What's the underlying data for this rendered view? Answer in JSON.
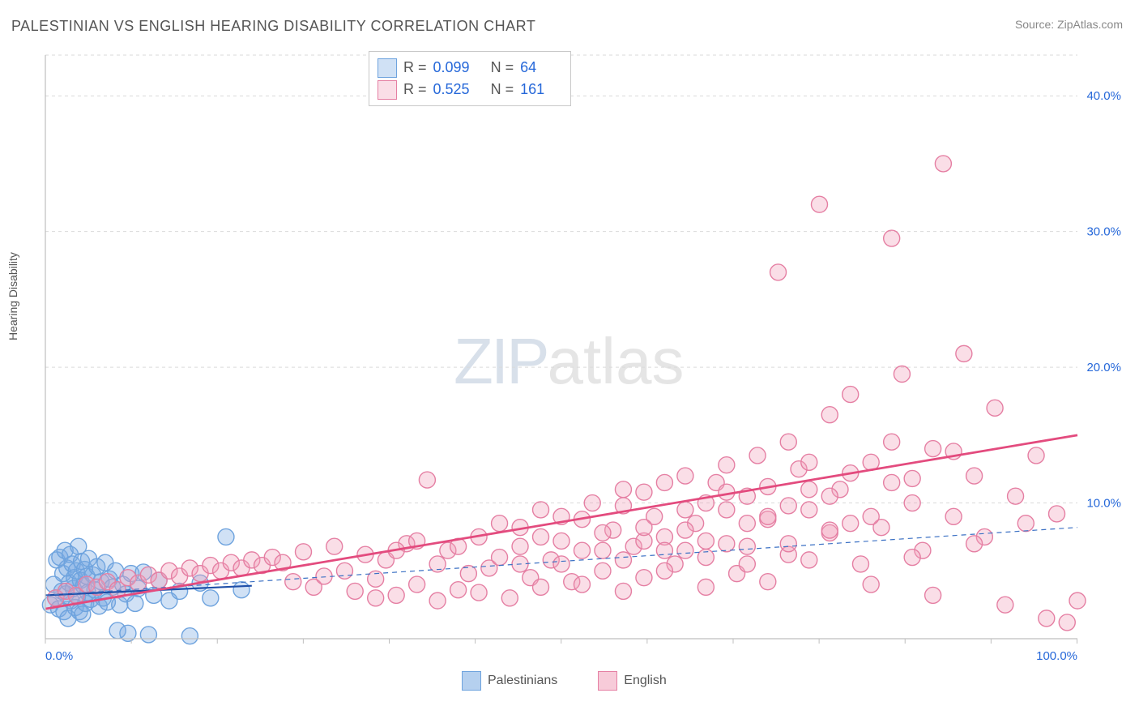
{
  "title": "PALESTINIAN VS ENGLISH HEARING DISABILITY CORRELATION CHART",
  "source": "Source: ZipAtlas.com",
  "ylabel": "Hearing Disability",
  "watermark": {
    "part1": "ZIP",
    "part2": "atlas"
  },
  "chart": {
    "type": "scatter",
    "xlim": [
      0,
      100
    ],
    "ylim": [
      0,
      43
    ],
    "x_ticks": [
      0,
      100
    ],
    "x_tick_labels": [
      "0.0%",
      "100.0%"
    ],
    "x_minor_step": 8.33,
    "y_ticks": [
      10,
      20,
      30,
      40
    ],
    "y_tick_labels": [
      "10.0%",
      "20.0%",
      "30.0%",
      "40.0%"
    ],
    "grid_color": "#d9d9d9",
    "axis_color": "#bfbfbf",
    "background": "#ffffff",
    "marker_radius": 10,
    "marker_stroke_width": 1.4,
    "series": [
      {
        "name": "Palestinians",
        "fill": "rgba(120,170,225,0.35)",
        "stroke": "#6ea3de",
        "trend_solid": {
          "x1": 0,
          "y1": 3.2,
          "x2": 20,
          "y2": 3.9,
          "color": "#1f4fa8",
          "width": 2.2
        },
        "trend_dashed": {
          "x1": 0,
          "y1": 3.2,
          "x2": 100,
          "y2": 8.2,
          "color": "#3c71c4",
          "width": 1.2,
          "dash": "6 5"
        },
        "stats": {
          "R": "0.099",
          "N": "64"
        },
        "points": [
          [
            0.5,
            2.5
          ],
          [
            0.8,
            4.0
          ],
          [
            1.0,
            3.0
          ],
          [
            1.1,
            5.8
          ],
          [
            1.3,
            2.2
          ],
          [
            1.4,
            6.0
          ],
          [
            1.6,
            3.5
          ],
          [
            1.7,
            4.8
          ],
          [
            1.8,
            2.0
          ],
          [
            1.9,
            6.5
          ],
          [
            2.0,
            3.3
          ],
          [
            2.1,
            5.2
          ],
          [
            2.2,
            1.5
          ],
          [
            2.3,
            4.1
          ],
          [
            2.4,
            6.2
          ],
          [
            2.5,
            2.8
          ],
          [
            2.6,
            5.5
          ],
          [
            2.7,
            3.7
          ],
          [
            2.8,
            4.5
          ],
          [
            2.9,
            2.3
          ],
          [
            3.0,
            5.0
          ],
          [
            3.1,
            3.1
          ],
          [
            3.2,
            6.8
          ],
          [
            3.3,
            2.0
          ],
          [
            3.4,
            4.3
          ],
          [
            3.5,
            5.7
          ],
          [
            3.6,
            1.8
          ],
          [
            3.7,
            3.9
          ],
          [
            3.8,
            5.1
          ],
          [
            3.9,
            2.6
          ],
          [
            4.0,
            4.6
          ],
          [
            4.1,
            3.4
          ],
          [
            4.2,
            5.9
          ],
          [
            4.4,
            2.9
          ],
          [
            4.6,
            4.7
          ],
          [
            4.8,
            3.6
          ],
          [
            5.0,
            5.3
          ],
          [
            5.2,
            2.4
          ],
          [
            5.4,
            4.2
          ],
          [
            5.6,
            3.0
          ],
          [
            5.8,
            5.6
          ],
          [
            6.0,
            2.7
          ],
          [
            6.2,
            4.4
          ],
          [
            6.5,
            3.8
          ],
          [
            6.8,
            5.0
          ],
          [
            7.0,
            0.6
          ],
          [
            7.2,
            2.5
          ],
          [
            7.5,
            4.0
          ],
          [
            7.8,
            3.3
          ],
          [
            8.0,
            0.4
          ],
          [
            8.3,
            4.8
          ],
          [
            8.7,
            2.6
          ],
          [
            9.0,
            3.7
          ],
          [
            9.5,
            4.9
          ],
          [
            10.0,
            0.3
          ],
          [
            10.5,
            3.2
          ],
          [
            11.0,
            4.3
          ],
          [
            12.0,
            2.8
          ],
          [
            13.0,
            3.5
          ],
          [
            14.0,
            0.2
          ],
          [
            15.0,
            4.1
          ],
          [
            16.0,
            3.0
          ],
          [
            17.5,
            7.5
          ],
          [
            19.0,
            3.6
          ]
        ]
      },
      {
        "name": "English",
        "fill": "rgba(240,160,185,0.35)",
        "stroke": "#e57fa3",
        "trend_solid": {
          "x1": 0,
          "y1": 2.2,
          "x2": 100,
          "y2": 15.0,
          "color": "#e34b7e",
          "width": 2.8
        },
        "trend_dashed": null,
        "stats": {
          "R": "0.525",
          "N": "161"
        },
        "points": [
          [
            1,
            3.0
          ],
          [
            2,
            3.5
          ],
          [
            3,
            3.2
          ],
          [
            4,
            4.0
          ],
          [
            5,
            3.8
          ],
          [
            6,
            4.2
          ],
          [
            7,
            3.6
          ],
          [
            8,
            4.5
          ],
          [
            9,
            4.1
          ],
          [
            10,
            4.7
          ],
          [
            11,
            4.3
          ],
          [
            12,
            5.0
          ],
          [
            13,
            4.6
          ],
          [
            14,
            5.2
          ],
          [
            15,
            4.8
          ],
          [
            16,
            5.4
          ],
          [
            17,
            5.0
          ],
          [
            18,
            5.6
          ],
          [
            19,
            5.2
          ],
          [
            20,
            5.8
          ],
          [
            21,
            5.4
          ],
          [
            22,
            6.0
          ],
          [
            23,
            5.6
          ],
          [
            24,
            4.2
          ],
          [
            25,
            6.4
          ],
          [
            26,
            3.8
          ],
          [
            27,
            4.6
          ],
          [
            28,
            6.8
          ],
          [
            29,
            5.0
          ],
          [
            30,
            3.5
          ],
          [
            31,
            6.2
          ],
          [
            32,
            4.4
          ],
          [
            33,
            5.8
          ],
          [
            34,
            3.2
          ],
          [
            35,
            7.0
          ],
          [
            36,
            4.0
          ],
          [
            37,
            11.7
          ],
          [
            38,
            5.5
          ],
          [
            39,
            6.5
          ],
          [
            40,
            3.6
          ],
          [
            41,
            4.8
          ],
          [
            42,
            7.5
          ],
          [
            43,
            5.2
          ],
          [
            44,
            6.0
          ],
          [
            45,
            3.0
          ],
          [
            46,
            8.2
          ],
          [
            47,
            4.5
          ],
          [
            48,
            9.5
          ],
          [
            49,
            5.8
          ],
          [
            50,
            7.2
          ],
          [
            51,
            4.2
          ],
          [
            52,
            6.5
          ],
          [
            53,
            10.0
          ],
          [
            54,
            5.0
          ],
          [
            55,
            8.0
          ],
          [
            56,
            11.0
          ],
          [
            57,
            6.8
          ],
          [
            58,
            4.5
          ],
          [
            59,
            9.0
          ],
          [
            60,
            7.5
          ],
          [
            61,
            5.5
          ],
          [
            62,
            12.0
          ],
          [
            63,
            8.5
          ],
          [
            64,
            6.0
          ],
          [
            65,
            11.5
          ],
          [
            66,
            7.0
          ],
          [
            67,
            4.8
          ],
          [
            68,
            10.5
          ],
          [
            69,
            13.5
          ],
          [
            70,
            8.8
          ],
          [
            71,
            27.0
          ],
          [
            72,
            6.2
          ],
          [
            73,
            12.5
          ],
          [
            74,
            9.5
          ],
          [
            75,
            32.0
          ],
          [
            76,
            7.8
          ],
          [
            77,
            11.0
          ],
          [
            78,
            18.0
          ],
          [
            79,
            5.5
          ],
          [
            80,
            13.0
          ],
          [
            81,
            8.2
          ],
          [
            82,
            29.5
          ],
          [
            83,
            19.5
          ],
          [
            84,
            10.0
          ],
          [
            85,
            6.5
          ],
          [
            86,
            14.0
          ],
          [
            87,
            35.0
          ],
          [
            88,
            9.0
          ],
          [
            89,
            21.0
          ],
          [
            90,
            12.0
          ],
          [
            91,
            7.5
          ],
          [
            92,
            17.0
          ],
          [
            93,
            2.5
          ],
          [
            94,
            10.5
          ],
          [
            95,
            8.5
          ],
          [
            96,
            13.5
          ],
          [
            97,
            1.5
          ],
          [
            98,
            9.2
          ],
          [
            99,
            1.2
          ],
          [
            100,
            2.8
          ],
          [
            32,
            3.0
          ],
          [
            34,
            6.5
          ],
          [
            36,
            7.2
          ],
          [
            38,
            2.8
          ],
          [
            40,
            6.8
          ],
          [
            42,
            3.4
          ],
          [
            44,
            8.5
          ],
          [
            46,
            5.5
          ],
          [
            48,
            3.8
          ],
          [
            50,
            9.0
          ],
          [
            52,
            4.0
          ],
          [
            54,
            7.8
          ],
          [
            56,
            3.5
          ],
          [
            58,
            10.8
          ],
          [
            60,
            5.0
          ],
          [
            62,
            8.0
          ],
          [
            64,
            3.8
          ],
          [
            66,
            9.5
          ],
          [
            68,
            6.8
          ],
          [
            70,
            4.2
          ],
          [
            72,
            14.5
          ],
          [
            74,
            5.8
          ],
          [
            76,
            16.5
          ],
          [
            78,
            8.5
          ],
          [
            80,
            4.0
          ],
          [
            82,
            11.5
          ],
          [
            84,
            6.0
          ],
          [
            86,
            3.2
          ],
          [
            88,
            13.8
          ],
          [
            90,
            7.0
          ],
          [
            46,
            6.8
          ],
          [
            48,
            7.5
          ],
          [
            50,
            5.5
          ],
          [
            52,
            8.8
          ],
          [
            54,
            6.5
          ],
          [
            56,
            9.8
          ],
          [
            58,
            7.2
          ],
          [
            60,
            11.5
          ],
          [
            62,
            6.5
          ],
          [
            64,
            10.0
          ],
          [
            66,
            12.8
          ],
          [
            68,
            8.5
          ],
          [
            70,
            11.2
          ],
          [
            72,
            9.8
          ],
          [
            74,
            13.0
          ],
          [
            76,
            10.5
          ],
          [
            78,
            12.2
          ],
          [
            80,
            9.0
          ],
          [
            82,
            14.5
          ],
          [
            84,
            11.8
          ],
          [
            56,
            5.8
          ],
          [
            58,
            8.2
          ],
          [
            60,
            6.5
          ],
          [
            62,
            9.5
          ],
          [
            64,
            7.2
          ],
          [
            66,
            10.8
          ],
          [
            68,
            5.5
          ],
          [
            70,
            9.0
          ],
          [
            72,
            7.0
          ],
          [
            74,
            11.0
          ],
          [
            76,
            8.0
          ]
        ]
      }
    ],
    "legend_bottom": [
      {
        "label": "Palestinians",
        "fill": "rgba(120,170,225,0.55)",
        "stroke": "#6ea3de"
      },
      {
        "label": "English",
        "fill": "rgba(240,160,185,0.55)",
        "stroke": "#e57fa3"
      }
    ]
  }
}
